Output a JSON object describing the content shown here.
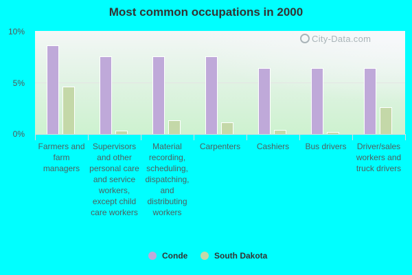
{
  "title": "Most common occupations in 2000",
  "watermark": "City-Data.com",
  "colors": {
    "background": "#00ffff",
    "conde": "#bfa9d9",
    "south_dakota": "#c4d8a8"
  },
  "y_axis": {
    "ticks": [
      "10%",
      "5%",
      "0%"
    ]
  },
  "legend": {
    "items": [
      {
        "label": "Conde",
        "color": "#bfa9d9"
      },
      {
        "label": "South Dakota",
        "color": "#c4d8a8"
      }
    ]
  },
  "chart_data": {
    "type": "bar",
    "title": "Most common occupations in 2000",
    "xlabel": "",
    "ylabel": "",
    "ylim": [
      0,
      10
    ],
    "y_ticks": [
      "0%",
      "5%",
      "10%"
    ],
    "grid": true,
    "legend_position": "bottom",
    "categories": [
      "Farmers and farm managers",
      "Supervisors and other personal care and service workers, except child care workers",
      "Material recording, scheduling, dispatching, and distributing workers",
      "Carpenters",
      "Cashiers",
      "Bus drivers",
      "Driver/sales workers and truck drivers"
    ],
    "series": [
      {
        "name": "Conde",
        "values": [
          8.6,
          7.5,
          7.5,
          7.5,
          6.4,
          6.4,
          6.4
        ]
      },
      {
        "name": "South Dakota",
        "values": [
          4.6,
          0.3,
          1.3,
          1.1,
          0.4,
          0.2,
          2.6
        ]
      }
    ]
  }
}
